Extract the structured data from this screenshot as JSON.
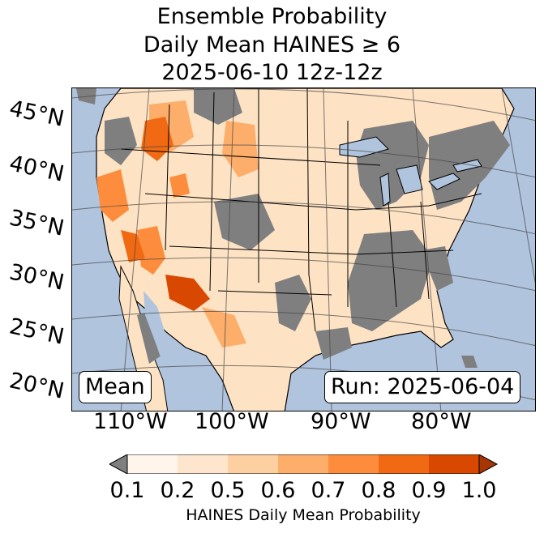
{
  "title": {
    "line1": "Ensemble Probability",
    "line2": "Daily Mean HAINES ≥ 6",
    "line3": "2025-06-10 12z-12z"
  },
  "map": {
    "ocean_color": "#b0c4de",
    "land_nodata_color": "#7f7f7f",
    "lat_labels": [
      "45°N",
      "40°N",
      "35°N",
      "30°N",
      "25°N",
      "20°N"
    ],
    "lon_labels": [
      "110°W",
      "100°W",
      "90°W",
      "80°W"
    ],
    "mean_label": "Mean",
    "run_label": "Run: 2025-06-04"
  },
  "colorbar": {
    "label": "HAINES Daily Mean Probability",
    "ticks": [
      "0.1",
      "0.2",
      "0.5",
      "0.6",
      "0.7",
      "0.8",
      "0.9",
      "1.0"
    ],
    "under_color": "#7f7f7f",
    "colors": [
      "#fff5eb",
      "#fee6ce",
      "#fdd0a2",
      "#fdae6b",
      "#fd8d3c",
      "#f16913",
      "#d94801",
      "#a63603"
    ]
  }
}
